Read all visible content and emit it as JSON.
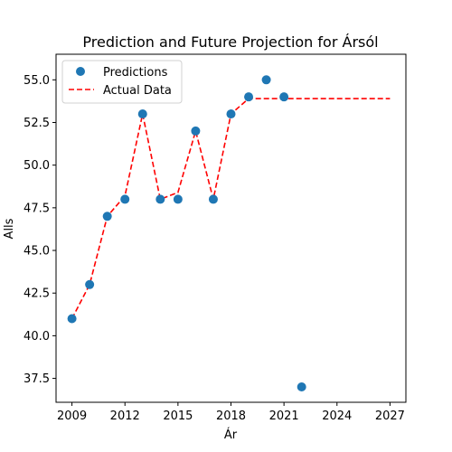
{
  "chart_data": {
    "type": "scatter",
    "title": "Prediction and Future Projection for Ársól",
    "xlabel": "Ár",
    "ylabel": "Alls",
    "xlim": [
      2008.1,
      2027.9
    ],
    "ylim": [
      36.1,
      56.5
    ],
    "xticks": [
      2009,
      2012,
      2015,
      2018,
      2021,
      2024,
      2027
    ],
    "yticks": [
      37.5,
      40.0,
      42.5,
      45.0,
      47.5,
      50.0,
      52.5,
      55.0
    ],
    "ytick_labels": [
      "37.5",
      "40.0",
      "42.5",
      "45.0",
      "47.5",
      "50.0",
      "52.5",
      "55.0"
    ],
    "grid": false,
    "legend_position": "top-left",
    "series": [
      {
        "name": "Predictions",
        "kind": "scatter",
        "color": "#1f77b4",
        "x": [
          2009,
          2010,
          2011,
          2012,
          2013,
          2014,
          2015,
          2016,
          2017,
          2018,
          2019,
          2020,
          2021,
          2022
        ],
        "y": [
          41,
          43,
          47,
          48,
          53,
          48,
          48,
          52,
          48,
          53,
          54,
          55,
          54,
          37
        ]
      },
      {
        "name": "Actual Data",
        "kind": "line",
        "style": "dashed",
        "color": "#ff0000",
        "x": [
          2009,
          2010,
          2011,
          2012,
          2013,
          2014,
          2015,
          2016,
          2017,
          2018,
          2019,
          2020,
          2021,
          2022,
          2023,
          2024,
          2025,
          2026,
          2027
        ],
        "y": [
          41,
          43,
          47,
          48.2,
          53,
          48,
          48.4,
          52,
          48,
          53,
          53.9,
          53.9,
          53.9,
          53.9,
          53.9,
          53.9,
          53.9,
          53.9,
          53.9
        ]
      }
    ]
  }
}
